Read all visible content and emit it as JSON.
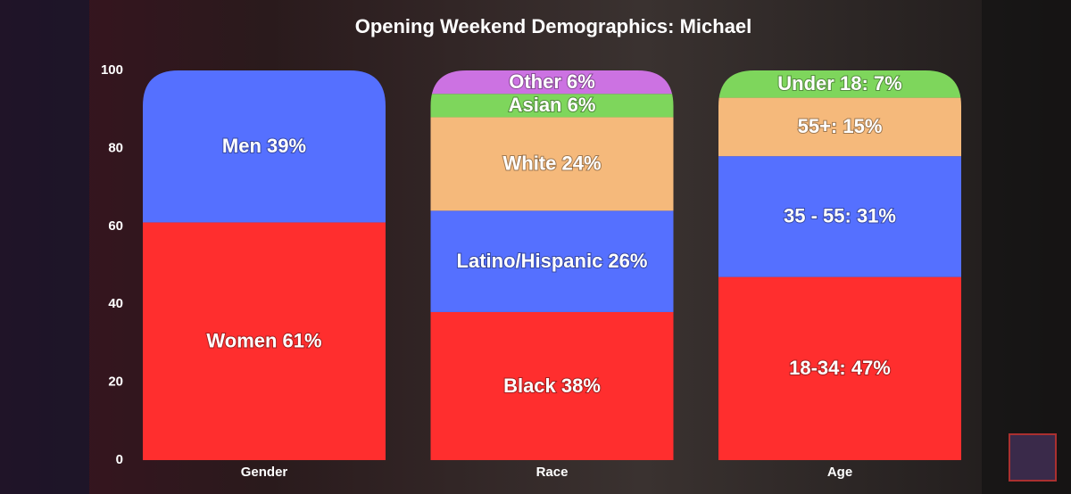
{
  "chart_data": {
    "type": "stacked-bar",
    "title": "Opening Weekend Demographics: Michael",
    "categories": [
      "Gender",
      "Race",
      "Age"
    ],
    "stacks": [
      {
        "values": [
          61,
          39
        ],
        "value_labels": [
          "Women 61%",
          "Men 39%"
        ],
        "colors": [
          "#ff2e2e",
          "#5570ff"
        ]
      },
      {
        "values": [
          38,
          26,
          24,
          6,
          6
        ],
        "value_labels": [
          "Black 38%",
          "Latino/Hispanic 26%",
          "White 24%",
          "Asian 6%",
          "Other 6%"
        ],
        "colors": [
          "#ff2e2e",
          "#5570ff",
          "#f5b97b",
          "#7ed65c",
          "#cc72e2"
        ]
      },
      {
        "values": [
          47,
          31,
          15,
          7
        ],
        "value_labels": [
          "18-34: 47%",
          "35 - 55: 31%",
          "55+: 15%",
          "Under 18: 7%"
        ],
        "colors": [
          "#ff2e2e",
          "#5570ff",
          "#f5b97b",
          "#7ed65c"
        ]
      }
    ],
    "ylim": [
      0,
      100
    ],
    "yticks": [
      0,
      20,
      40,
      60,
      80,
      100
    ],
    "grid": false
  }
}
